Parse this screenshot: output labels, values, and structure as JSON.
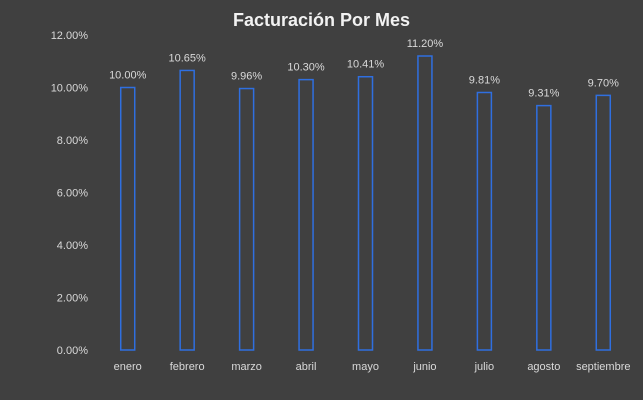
{
  "chart_data": {
    "type": "bar",
    "title": "Facturación Por Mes",
    "xlabel": "",
    "ylabel": "",
    "categories": [
      "enero",
      "febrero",
      "marzo",
      "abril",
      "mayo",
      "junio",
      "julio",
      "agosto",
      "septiembre"
    ],
    "values": [
      10.0,
      10.65,
      9.96,
      10.3,
      10.41,
      11.2,
      9.81,
      9.31,
      9.7
    ],
    "value_labels": [
      "10.00%",
      "10.65%",
      "9.96%",
      "10.30%",
      "10.41%",
      "11.20%",
      "9.81%",
      "9.31%",
      "9.70%"
    ],
    "ylim": [
      0,
      12
    ],
    "yticks": [
      0,
      2,
      4,
      6,
      8,
      10,
      12
    ],
    "ytick_labels": [
      "0.00%",
      "2.00%",
      "4.00%",
      "6.00%",
      "8.00%",
      "10.00%",
      "12.00%"
    ],
    "grid": false,
    "legend": "none",
    "colors": {
      "background": "#404040",
      "bar_fill": "#404040",
      "bar_stroke": "#2f6fe0",
      "text": "#d9d9d9",
      "title": "#f2f2f2"
    }
  }
}
